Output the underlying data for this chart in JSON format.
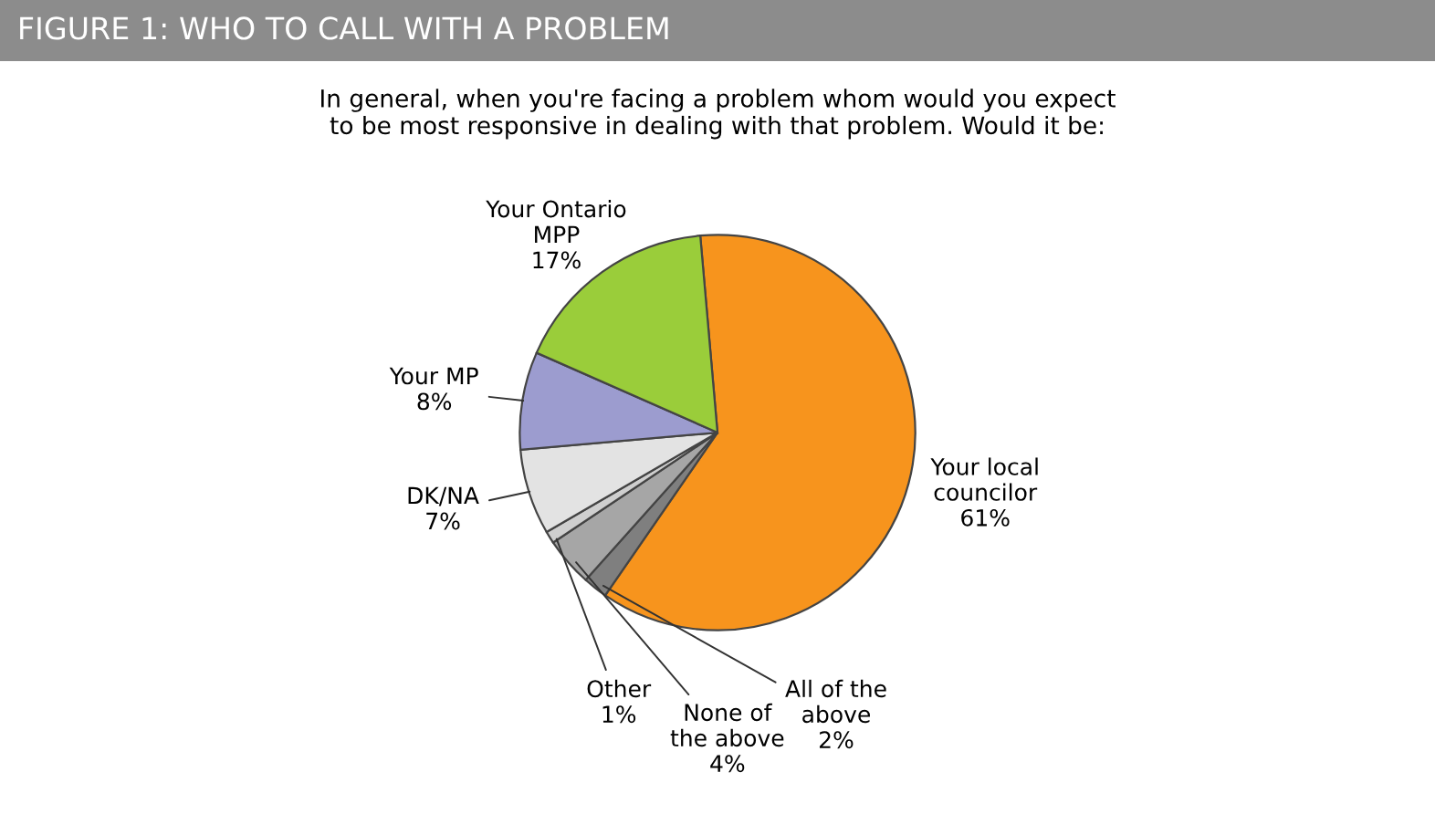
{
  "chart_data": {
    "type": "pie",
    "title": "FIGURE 1: WHO TO CALL WITH A PROBLEM",
    "subtitle": "In general, when you're facing a problem whom would you expect\nto be most responsive in dealing with that problem. Would it be:",
    "categories": [
      "Your local\ncouncilor",
      "All of the\nabove",
      "None of\nthe above",
      "Other",
      "DK/NA",
      "Your MP",
      "Your Ontario\nMPP"
    ],
    "values": [
      61,
      2,
      4,
      1,
      7,
      8,
      17
    ],
    "value_labels": [
      "61%",
      "2%",
      "4%",
      "1%",
      "7%",
      "8%",
      "17%"
    ],
    "colors": [
      "#f7941d",
      "#7f7f7f",
      "#a6a6a6",
      "#cfcfcf",
      "#e3e3e3",
      "#9c9ccf",
      "#9acd3a"
    ],
    "legend": false
  }
}
